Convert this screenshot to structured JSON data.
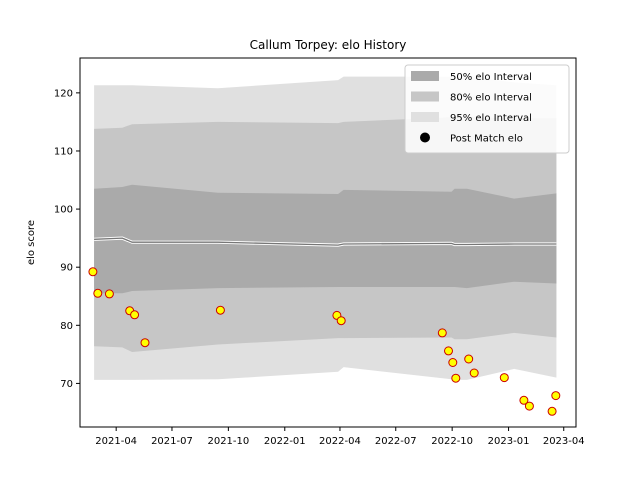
{
  "chart_data": {
    "type": "area",
    "title": "Callum Torpey: elo History",
    "xlabel": "",
    "ylabel": "elo score",
    "xlim": [
      "2021-02-01",
      "2023-04-21"
    ],
    "ylim": [
      62.5,
      126
    ],
    "x_ticks": [
      "2021-04",
      "2021-07",
      "2021-10",
      "2022-01",
      "2022-04",
      "2022-07",
      "2022-10",
      "2023-01",
      "2023-04"
    ],
    "y_ticks": [
      70,
      80,
      90,
      100,
      110,
      120
    ],
    "legend": {
      "position": "top-right",
      "entries": [
        {
          "label": "50% elo Interval",
          "color": "#aaaaaa"
        },
        {
          "label": "80% elo Interval",
          "color": "#c6c6c6"
        },
        {
          "label": "95% elo Interval",
          "color": "#e0e0e0"
        },
        {
          "label": "Post Match elo",
          "color": "#000000"
        }
      ]
    },
    "bands": {
      "dates": [
        "2021-02-24",
        "2021-04-11",
        "2021-04-27",
        "2021-09-14",
        "2022-03-29",
        "2022-04-07",
        "2022-09-30",
        "2022-10-05",
        "2022-10-25",
        "2023-01-10",
        "2023-03-20"
      ],
      "mean": [
        94.8,
        95.0,
        94.3,
        94.3,
        93.8,
        94.0,
        94.1,
        93.9,
        93.9,
        94.0,
        94.0
      ],
      "p50": {
        "lower": [
          85.5,
          85.5,
          85.9,
          86.4,
          86.6,
          86.6,
          86.6,
          86.6,
          86.4,
          87.5,
          87.2
        ],
        "upper": [
          103.5,
          103.8,
          104.2,
          102.8,
          102.6,
          103.3,
          103.0,
          103.5,
          103.5,
          101.8,
          102.7
        ]
      },
      "p80": {
        "lower": [
          76.4,
          76.2,
          75.4,
          76.7,
          77.8,
          77.8,
          77.9,
          77.6,
          77.6,
          78.7,
          77.9
        ],
        "upper": [
          113.8,
          114.0,
          114.6,
          115.0,
          114.8,
          115.0,
          115.8,
          115.8,
          115.8,
          115.6,
          115.6
        ]
      },
      "p95": {
        "lower": [
          70.6,
          70.6,
          70.6,
          70.7,
          72.0,
          72.8,
          70.7,
          70.6,
          70.6,
          72.5,
          71.0
        ],
        "upper": [
          121.3,
          121.3,
          121.3,
          120.8,
          122.2,
          122.8,
          122.8,
          122.8,
          122.8,
          121.8,
          121.3
        ]
      }
    },
    "series": [
      {
        "name": "Post Match elo",
        "type": "scatter",
        "color": "#ffff00",
        "edge_color": "#cc0000",
        "points": [
          {
            "x": "2021-02-22",
            "y": 89.2
          },
          {
            "x": "2021-03-02",
            "y": 85.5
          },
          {
            "x": "2021-03-21",
            "y": 85.4
          },
          {
            "x": "2021-04-23",
            "y": 82.5
          },
          {
            "x": "2021-05-01",
            "y": 81.8
          },
          {
            "x": "2021-05-18",
            "y": 77.0
          },
          {
            "x": "2021-09-18",
            "y": 82.6
          },
          {
            "x": "2022-03-27",
            "y": 81.7
          },
          {
            "x": "2022-04-03",
            "y": 80.8
          },
          {
            "x": "2022-09-15",
            "y": 78.7
          },
          {
            "x": "2022-09-25",
            "y": 75.6
          },
          {
            "x": "2022-10-02",
            "y": 73.6
          },
          {
            "x": "2022-10-07",
            "y": 70.9
          },
          {
            "x": "2022-10-28",
            "y": 74.2
          },
          {
            "x": "2022-11-06",
            "y": 71.8
          },
          {
            "x": "2022-12-25",
            "y": 71.0
          },
          {
            "x": "2023-01-26",
            "y": 67.1
          },
          {
            "x": "2023-02-04",
            "y": 66.1
          },
          {
            "x": "2023-03-13",
            "y": 65.2
          },
          {
            "x": "2023-03-19",
            "y": 67.9
          }
        ]
      }
    ]
  }
}
